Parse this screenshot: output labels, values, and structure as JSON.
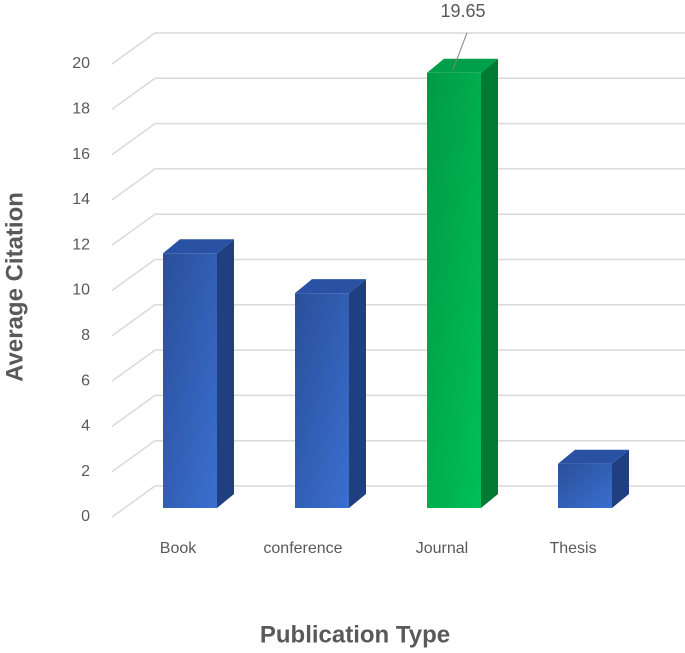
{
  "chart_data": {
    "type": "bar3d",
    "x_label": "Publication Type",
    "y_label": "Average Citation",
    "categories": [
      "Book",
      "conference",
      "Journal",
      "Thesis"
    ],
    "values": [
      11.5,
      9.7,
      19.65,
      2.0
    ],
    "value_labels": [
      null,
      null,
      "19.65",
      null
    ],
    "colors": [
      "#2f5cb0",
      "#2f5cb0",
      "#00b050",
      "#2f5cb0"
    ],
    "ylim": [
      0,
      20
    ],
    "yticks": [
      0,
      2,
      4,
      6,
      8,
      10,
      12,
      14,
      16,
      18,
      20
    ],
    "grid": true
  }
}
